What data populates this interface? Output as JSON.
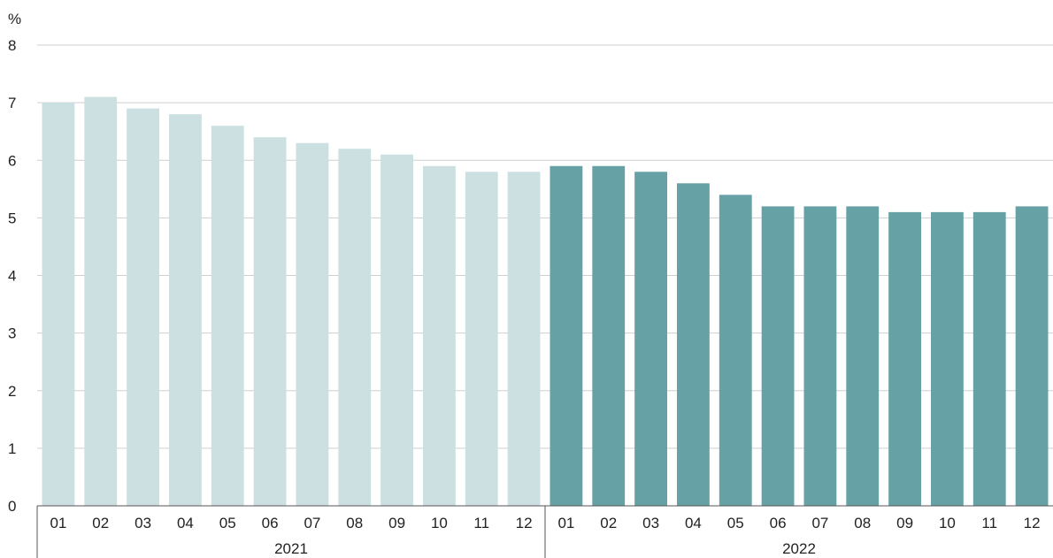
{
  "chart_data": {
    "type": "bar",
    "y_unit": "%",
    "ylim": [
      0,
      8
    ],
    "yticks": [
      "0",
      "1",
      "2",
      "3",
      "4",
      "5",
      "6",
      "7",
      "8"
    ],
    "grid": true,
    "legend": "none",
    "groups": [
      {
        "label": "2021",
        "color": "#cde0e1",
        "categories": [
          "01",
          "02",
          "03",
          "04",
          "05",
          "06",
          "07",
          "08",
          "09",
          "10",
          "11",
          "12"
        ],
        "values": [
          7.0,
          7.1,
          6.9,
          6.8,
          6.6,
          6.4,
          6.3,
          6.2,
          6.1,
          5.9,
          5.8,
          5.8
        ]
      },
      {
        "label": "2022",
        "color": "#66a1a5",
        "categories": [
          "01",
          "02",
          "03",
          "04",
          "05",
          "06",
          "07",
          "08",
          "09",
          "10",
          "11",
          "12"
        ],
        "values": [
          5.9,
          5.9,
          5.8,
          5.6,
          5.4,
          5.2,
          5.2,
          5.2,
          5.1,
          5.1,
          5.1,
          5.2
        ]
      }
    ]
  }
}
